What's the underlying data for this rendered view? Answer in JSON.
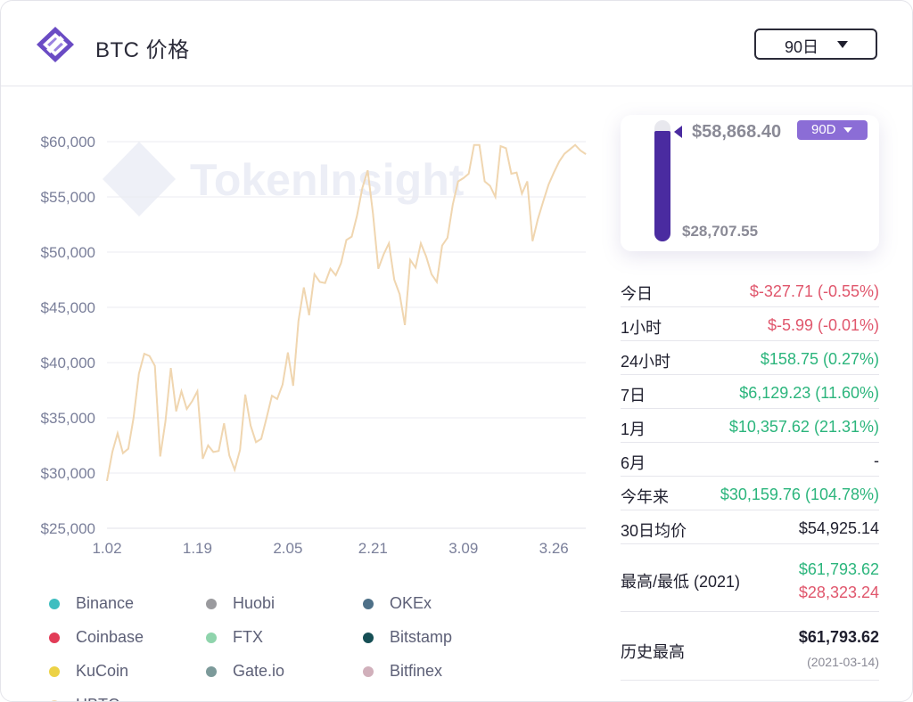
{
  "header": {
    "title": "BTC 价格",
    "period_selector": "90日",
    "logo_icon": "tokeninsight-logo-icon"
  },
  "watermark": "TokenInsight",
  "chart_data": {
    "type": "line",
    "title": "",
    "xlabel": "",
    "ylabel": "",
    "ylim": [
      25000,
      60000
    ],
    "y_ticks": [
      "$60,000",
      "$55,000",
      "$50,000",
      "$45,000",
      "$40,000",
      "$35,000",
      "$30,000",
      "$25,000"
    ],
    "y_tick_values": [
      60000,
      55000,
      50000,
      45000,
      40000,
      35000,
      30000,
      25000
    ],
    "x_ticks": [
      "1.02",
      "1.19",
      "2.05",
      "2.21",
      "3.09",
      "3.26"
    ],
    "x_tick_index": [
      0,
      17,
      34,
      50,
      67,
      84
    ],
    "x_count": 91,
    "grid": true,
    "legend_position": "bottom",
    "series": [
      {
        "name": "HBTC",
        "color": "#f0d6b0",
        "values": [
          29300,
          31900,
          33600,
          31800,
          32200,
          35000,
          39000,
          40800,
          40600,
          39700,
          31500,
          34700,
          39500,
          35600,
          37400,
          35800,
          36500,
          37400,
          31300,
          32500,
          31900,
          32000,
          34500,
          31600,
          30300,
          32100,
          37100,
          34300,
          32800,
          33100,
          35000,
          37000,
          36700,
          38000,
          40900,
          37900,
          43800,
          46800,
          44300,
          48000,
          47300,
          47200,
          48500,
          47900,
          49000,
          51100,
          51400,
          53300,
          55800,
          57400,
          53500,
          48500,
          49800,
          50800,
          47500,
          46200,
          43400,
          49300,
          48600,
          50800,
          49600,
          48000,
          47300,
          50600,
          51300,
          54300,
          56400,
          56700,
          57100,
          59700,
          59700,
          56400,
          56000,
          55000,
          59600,
          59400,
          57100,
          57200,
          55300,
          56400,
          51000,
          53000,
          54600,
          56100,
          57200,
          58200,
          58900,
          59300,
          59700,
          59200,
          58869
        ]
      }
    ]
  },
  "legend": [
    {
      "label": "Binance",
      "color": "#3fbec0"
    },
    {
      "label": "Huobi",
      "color": "#9a9a9e"
    },
    {
      "label": "OKEx",
      "color": "#4e7088"
    },
    {
      "label": "Coinbase",
      "color": "#e23c57"
    },
    {
      "label": "FTX",
      "color": "#8fd4ac"
    },
    {
      "label": "Bitstamp",
      "color": "#164f55"
    },
    {
      "label": "KuCoin",
      "color": "#ecd246"
    },
    {
      "label": "Gate.io",
      "color": "#7c9a9a"
    },
    {
      "label": "Bitfinex",
      "color": "#d1b0bb"
    },
    {
      "label": "HBTC",
      "color": "#f0d6b0"
    }
  ],
  "range": {
    "high": "$58,868.40",
    "low": "$28,707.55",
    "badge": "90D",
    "fill_fraction": 0.91
  },
  "stats": [
    {
      "k": "今日",
      "v": "$-327.71 (-0.55%)",
      "tone": "neg"
    },
    {
      "k": "1小时",
      "v": "$-5.99 (-0.01%)",
      "tone": "neg"
    },
    {
      "k": "24小时",
      "v": "$158.75 (0.27%)",
      "tone": "pos"
    },
    {
      "k": "7日",
      "v": "$6,129.23 (11.60%)",
      "tone": "pos"
    },
    {
      "k": "1月",
      "v": "$10,357.62 (21.31%)",
      "tone": "pos"
    },
    {
      "k": "6月",
      "v": "-",
      "tone": "neu"
    },
    {
      "k": "今年来",
      "v": "$30,159.76 (104.78%)",
      "tone": "pos"
    },
    {
      "k": "30日均价",
      "v": "$54,925.14",
      "tone": "neu"
    }
  ],
  "high_low": {
    "label": "最高/最低 (2021)",
    "high": "$61,793.62",
    "low": "$28,323.24"
  },
  "ath": {
    "label": "历史最高",
    "value": "$61,793.62",
    "date": "(2021-03-14)"
  }
}
